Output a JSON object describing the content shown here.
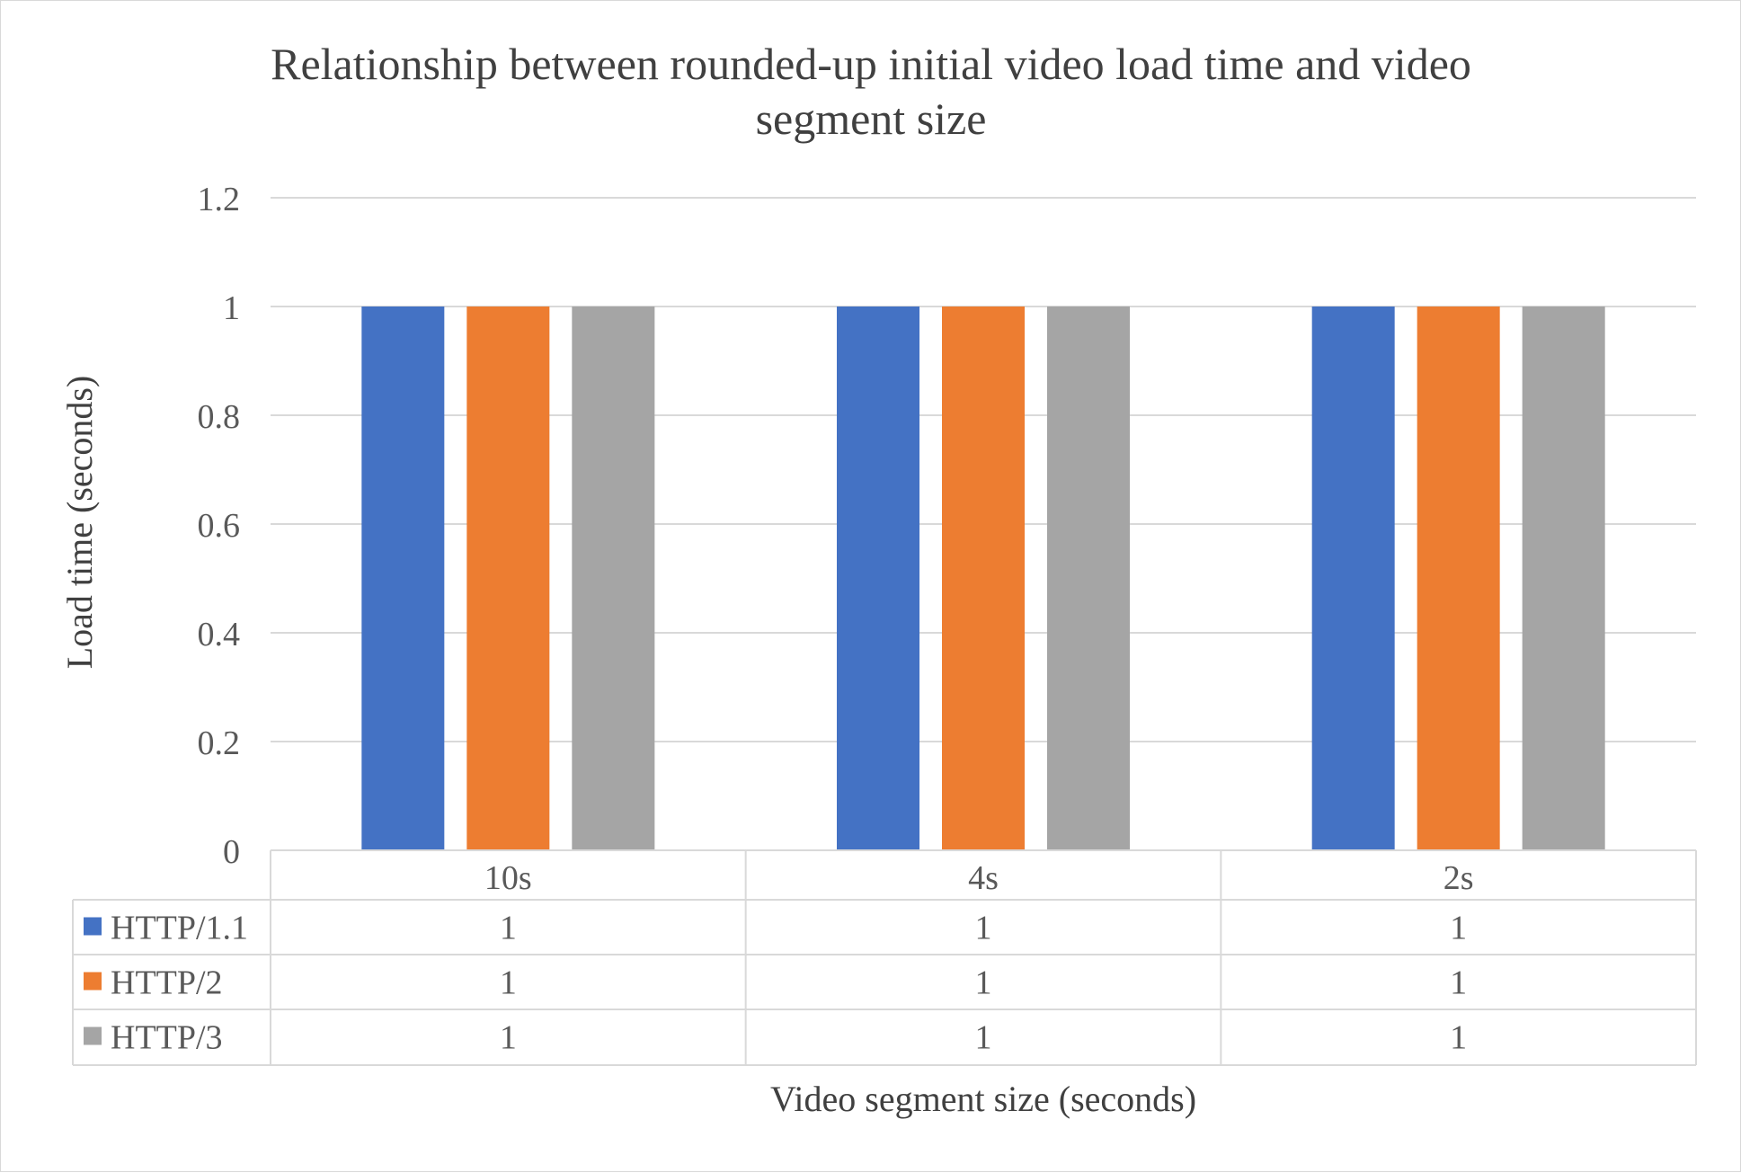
{
  "chart_data": {
    "type": "bar",
    "title": "Relationship between rounded-up initial video load time and video segment size",
    "title_lines": [
      "Relationship between rounded-up initial video load time and video",
      "segment size"
    ],
    "xlabel": "Video segment size (seconds)",
    "ylabel": "Load time (seconds)",
    "categories": [
      "10s",
      "4s",
      "2s"
    ],
    "ylim": [
      0,
      1.2
    ],
    "yticks": [
      0,
      0.2,
      0.4,
      0.6,
      0.8,
      1,
      1.2
    ],
    "ytick_labels": [
      "0",
      "0.2",
      "0.4",
      "0.6",
      "0.8",
      "1",
      "1.2"
    ],
    "grid": true,
    "legend": "data-table",
    "series": [
      {
        "name": "HTTP/1.1",
        "color": "#4472c4",
        "values": [
          1,
          1,
          1
        ],
        "labels": [
          "1",
          "1",
          "1"
        ]
      },
      {
        "name": "HTTP/2",
        "color": "#ed7d31",
        "values": [
          1,
          1,
          1
        ],
        "labels": [
          "1",
          "1",
          "1"
        ]
      },
      {
        "name": "HTTP/3",
        "color": "#a5a5a5",
        "values": [
          1,
          1,
          1
        ],
        "labels": [
          "1",
          "1",
          "1"
        ]
      }
    ]
  }
}
